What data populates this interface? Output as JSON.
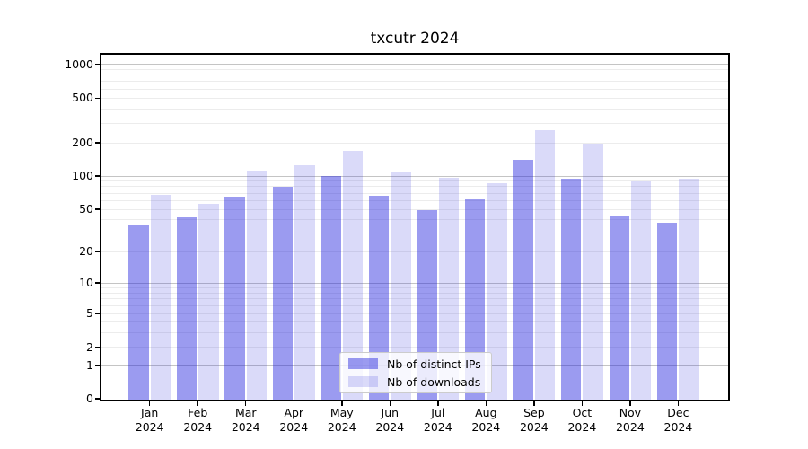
{
  "title": "txcutr 2024",
  "chart_data": {
    "type": "bar",
    "title": "txcutr 2024",
    "categories": [
      "Jan 2024",
      "Feb 2024",
      "Mar 2024",
      "Apr 2024",
      "May 2024",
      "Jun 2024",
      "Jul 2024",
      "Aug 2024",
      "Sep 2024",
      "Oct 2024",
      "Nov 2024",
      "Dec 2024"
    ],
    "month_labels": [
      "Jan",
      "Feb",
      "Mar",
      "Apr",
      "May",
      "Jun",
      "Jul",
      "Aug",
      "Sep",
      "Oct",
      "Nov",
      "Dec"
    ],
    "year_label": "2024",
    "series": [
      {
        "name": "Nb of distinct IPs",
        "color_rgba": "rgba(34,34,221,0.45)",
        "values": [
          35,
          42,
          65,
          80,
          100,
          66,
          49,
          61,
          140,
          94,
          44,
          37
        ]
      },
      {
        "name": "Nb of downloads",
        "color_rgba": "rgba(34,34,221,0.17)",
        "values": [
          68,
          56,
          112,
          125,
          170,
          108,
          97,
          86,
          260,
          196,
          89,
          95
        ]
      }
    ],
    "xlabel": "",
    "ylabel": "",
    "yscale": "log-like",
    "ylim": [
      0,
      1200
    ],
    "yticks": [
      0,
      1,
      2,
      5,
      10,
      20,
      50,
      100,
      200,
      500,
      1000
    ],
    "grid": true,
    "legend_position": "lower center"
  },
  "legend": {
    "items": [
      {
        "label": "Nb of distinct IPs"
      },
      {
        "label": "Nb of downloads"
      }
    ]
  }
}
